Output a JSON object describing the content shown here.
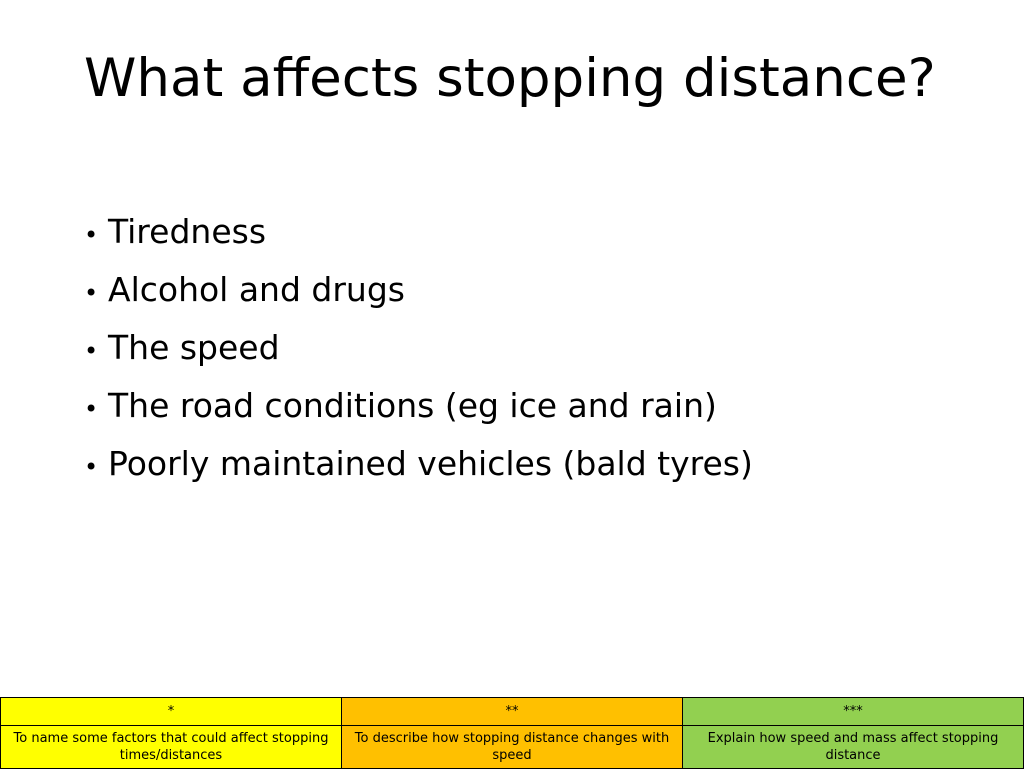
{
  "slide": {
    "title": "What affects stopping distance?",
    "bullets": [
      "Tiredness",
      "Alcohol and drugs",
      "The speed",
      "The road conditions (eg ice and rain)",
      "Poorly maintained vehicles (bald tyres)"
    ]
  },
  "objectives": {
    "colors": [
      "#ffff00",
      "#ffc000",
      "#92d050"
    ],
    "levels": [
      "*",
      "**",
      "***"
    ],
    "descriptions": [
      "To name some factors that could affect stopping times/distances",
      "To describe how stopping distance changes with speed",
      "Explain how speed and mass affect stopping distance"
    ]
  }
}
